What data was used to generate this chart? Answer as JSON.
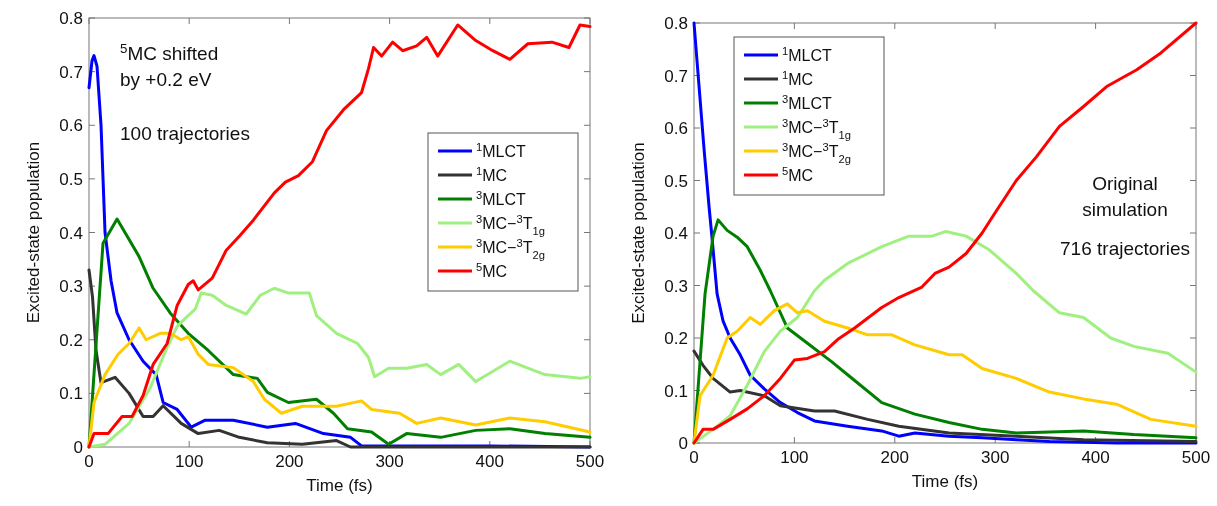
{
  "chart_data": [
    {
      "type": "line",
      "xlabel": "Time (fs)",
      "ylabel": "Excited-state population",
      "xlim": [
        0,
        500
      ],
      "ylim": [
        0,
        0.8
      ],
      "xticks": [
        0,
        100,
        200,
        300,
        400,
        500
      ],
      "yticks": [
        0,
        0.1,
        0.2,
        0.3,
        0.4,
        0.5,
        0.6,
        0.7,
        0.8
      ],
      "grid": false,
      "legend": "right",
      "annotations": [
        "$^{5}$MC shifted\nby +0.2 eV",
        "100 trajectories"
      ],
      "series": [
        {
          "name": "$^{1}$MLCT",
          "color": "#0000ff",
          "x": [
            0,
            3,
            5,
            8,
            12,
            16,
            22,
            28,
            40,
            54,
            67,
            74,
            88,
            102,
            116,
            144,
            178,
            206,
            234,
            261,
            272,
            300,
            400,
            500
          ],
          "values": [
            0.67,
            0.72,
            0.73,
            0.71,
            0.6,
            0.4,
            0.31,
            0.25,
            0.2,
            0.16,
            0.135,
            0.083,
            0.07,
            0.037,
            0.05,
            0.05,
            0.037,
            0.044,
            0.025,
            0.018,
            0.002,
            0.002,
            0.002,
            0
          ]
        },
        {
          "name": "$^{1}$MC",
          "color": "#333333",
          "x": [
            0,
            3.5,
            7,
            12,
            26,
            40,
            54,
            64,
            74,
            92,
            109,
            130,
            150,
            178,
            213,
            247,
            261,
            300,
            400,
            500
          ],
          "values": [
            0.33,
            0.28,
            0.18,
            0.12,
            0.13,
            0.1,
            0.057,
            0.057,
            0.077,
            0.044,
            0.025,
            0.031,
            0.018,
            0.008,
            0.005,
            0.012,
            0,
            0,
            0,
            0
          ]
        },
        {
          "name": "$^{3}$MLCT",
          "color": "#007f00",
          "x": [
            0,
            9,
            14,
            28,
            50,
            64,
            81,
            99,
            119,
            144,
            168,
            178,
            199,
            227,
            244,
            258,
            282,
            299,
            317,
            351,
            386,
            420,
            455,
            500
          ],
          "values": [
            0,
            0.245,
            0.38,
            0.425,
            0.355,
            0.296,
            0.25,
            0.212,
            0.18,
            0.135,
            0.128,
            0.102,
            0.083,
            0.089,
            0.063,
            0.034,
            0.028,
            0.005,
            0.025,
            0.018,
            0.031,
            0.034,
            0.025,
            0.018
          ]
        },
        {
          "name": "$^{3}$MC−$^{3}$T$_{1g}$",
          "color": "#a0f080",
          "x": [
            0,
            16,
            40,
            61,
            78,
            88,
            95,
            106,
            112,
            123,
            137,
            157,
            171,
            185,
            199,
            220,
            227,
            247,
            268,
            279,
            285,
            299,
            317,
            337,
            351,
            369,
            386,
            420,
            438,
            455,
            490,
            500
          ],
          "values": [
            0,
            0.005,
            0.044,
            0.11,
            0.186,
            0.225,
            0.238,
            0.257,
            0.287,
            0.283,
            0.264,
            0.248,
            0.283,
            0.296,
            0.287,
            0.287,
            0.245,
            0.212,
            0.193,
            0.167,
            0.131,
            0.147,
            0.147,
            0.154,
            0.135,
            0.154,
            0.122,
            0.16,
            0.147,
            0.135,
            0.128,
            0.131
          ]
        },
        {
          "name": "$^{3}$MC−$^{3}$T$_{2g}$",
          "color": "#ffcc00",
          "x": [
            0,
            5,
            16,
            29,
            40,
            50,
            57,
            71,
            81,
            92,
            99,
            109,
            119,
            144,
            164,
            175,
            192,
            213,
            247,
            272,
            282,
            310,
            327,
            351,
            386,
            420,
            455,
            500
          ],
          "values": [
            0,
            0.083,
            0.135,
            0.173,
            0.193,
            0.222,
            0.2,
            0.212,
            0.212,
            0.2,
            0.206,
            0.173,
            0.154,
            0.148,
            0.122,
            0.089,
            0.063,
            0.076,
            0.076,
            0.086,
            0.07,
            0.063,
            0.044,
            0.054,
            0.041,
            0.054,
            0.047,
            0.028
          ]
        },
        {
          "name": "$^{5}$MC",
          "color": "#ff0000",
          "x": [
            0,
            5,
            19,
            33,
            43,
            54,
            64,
            78,
            88,
            99,
            104,
            109,
            123,
            137,
            150,
            164,
            185,
            196,
            209,
            223,
            237,
            254,
            272,
            279,
            284,
            292,
            303,
            313,
            327,
            337,
            348,
            368,
            386,
            403,
            420,
            438,
            462,
            479,
            490,
            500
          ],
          "values": [
            0,
            0.025,
            0.025,
            0.057,
            0.057,
            0.096,
            0.154,
            0.193,
            0.264,
            0.303,
            0.31,
            0.293,
            0.315,
            0.367,
            0.393,
            0.423,
            0.474,
            0.494,
            0.506,
            0.532,
            0.59,
            0.629,
            0.661,
            0.706,
            0.745,
            0.729,
            0.755,
            0.739,
            0.748,
            0.764,
            0.729,
            0.787,
            0.758,
            0.739,
            0.723,
            0.752,
            0.755,
            0.745,
            0.787,
            0.784
          ]
        }
      ]
    },
    {
      "type": "line",
      "xlabel": "Time (fs)",
      "ylabel": "Excited-state population",
      "xlim": [
        0,
        500
      ],
      "ylim": [
        0,
        0.8
      ],
      "xticks": [
        0,
        100,
        200,
        300,
        400,
        500
      ],
      "yticks": [
        0,
        0.1,
        0.2,
        0.3,
        0.4,
        0.5,
        0.6,
        0.7,
        0.8
      ],
      "grid": false,
      "legend": "top left",
      "annotations": [
        "Original\nsimulation",
        "716 trajectories"
      ],
      "series": [
        {
          "name": "$^{1}$MLCT",
          "color": "#0000ff",
          "x": [
            0,
            5,
            10,
            15,
            18,
            23,
            29,
            36,
            46,
            56,
            70,
            86,
            103,
            120,
            153,
            187,
            204,
            220,
            254,
            287,
            321,
            354,
            421,
            500
          ],
          "values": [
            0.8,
            0.68,
            0.56,
            0.45,
            0.39,
            0.284,
            0.232,
            0.2,
            0.168,
            0.129,
            0.103,
            0.077,
            0.058,
            0.042,
            0.032,
            0.023,
            0.013,
            0.019,
            0.013,
            0.01,
            0.006,
            0.003,
            0,
            0
          ]
        },
        {
          "name": "$^{1}$MC",
          "color": "#333333",
          "x": [
            0,
            9,
            19,
            36,
            46,
            70,
            86,
            120,
            140,
            173,
            204,
            254,
            321,
            388,
            500
          ],
          "values": [
            0.175,
            0.148,
            0.123,
            0.097,
            0.1,
            0.09,
            0.071,
            0.061,
            0.061,
            0.045,
            0.032,
            0.019,
            0.013,
            0.006,
            0.003
          ]
        },
        {
          "name": "$^{3}$MLCT",
          "color": "#007f00",
          "x": [
            0,
            11,
            19,
            24,
            33,
            43,
            53,
            66,
            76,
            93,
            113,
            137,
            160,
            187,
            220,
            254,
            287,
            321,
            388,
            438,
            500
          ],
          "values": [
            0,
            0.284,
            0.394,
            0.425,
            0.405,
            0.392,
            0.374,
            0.329,
            0.29,
            0.219,
            0.19,
            0.155,
            0.119,
            0.077,
            0.055,
            0.039,
            0.026,
            0.019,
            0.023,
            0.016,
            0.01
          ]
        },
        {
          "name": "$^{3}$MC−$^{3}$T$_{1g}$",
          "color": "#a0f080",
          "x": [
            0,
            19,
            36,
            53,
            70,
            86,
            103,
            120,
            130,
            153,
            187,
            214,
            237,
            251,
            271,
            294,
            321,
            338,
            364,
            388,
            415,
            438,
            472,
            500
          ],
          "values": [
            0,
            0.026,
            0.052,
            0.11,
            0.174,
            0.213,
            0.239,
            0.29,
            0.31,
            0.342,
            0.374,
            0.394,
            0.394,
            0.403,
            0.394,
            0.368,
            0.323,
            0.29,
            0.248,
            0.239,
            0.2,
            0.184,
            0.171,
            0.135
          ]
        },
        {
          "name": "$^{3}$MC−$^{3}$T$_{2g}$",
          "color": "#ffcc00",
          "x": [
            0,
            6,
            19,
            33,
            43,
            56,
            66,
            80,
            93,
            103,
            113,
            130,
            153,
            173,
            197,
            220,
            254,
            267,
            287,
            321,
            354,
            388,
            421,
            455,
            500
          ],
          "values": [
            0,
            0.09,
            0.129,
            0.2,
            0.213,
            0.239,
            0.226,
            0.252,
            0.265,
            0.248,
            0.252,
            0.232,
            0.219,
            0.206,
            0.206,
            0.187,
            0.168,
            0.168,
            0.142,
            0.123,
            0.097,
            0.084,
            0.074,
            0.045,
            0.032
          ]
        },
        {
          "name": "$^{5}$MC",
          "color": "#ff0000",
          "x": [
            0,
            9,
            19,
            36,
            53,
            70,
            86,
            100,
            113,
            130,
            143,
            160,
            187,
            204,
            227,
            240,
            254,
            271,
            287,
            297,
            321,
            341,
            364,
            388,
            411,
            441,
            465,
            500
          ],
          "values": [
            0,
            0.026,
            0.026,
            0.045,
            0.065,
            0.09,
            0.123,
            0.158,
            0.161,
            0.174,
            0.197,
            0.219,
            0.258,
            0.277,
            0.297,
            0.323,
            0.335,
            0.361,
            0.4,
            0.43,
            0.5,
            0.545,
            0.603,
            0.641,
            0.679,
            0.711,
            0.743,
            0.8
          ]
        }
      ]
    }
  ]
}
